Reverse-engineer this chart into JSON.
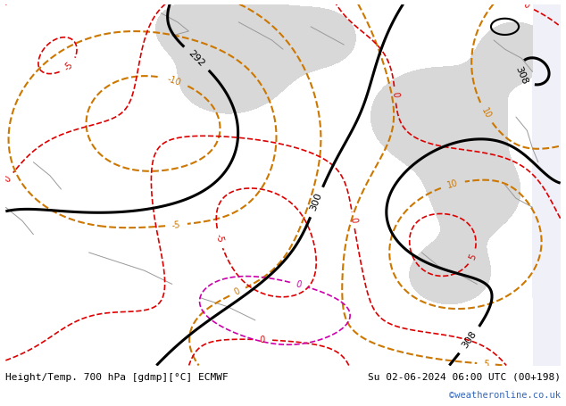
{
  "title_left": "Height/Temp. 700 hPa [gdmp][°C] ECMWF",
  "title_right": "Su 02-06-2024 06:00 UTC (00+198)",
  "copyright": "©weatheronline.co.uk",
  "bg_color": "#ffffff",
  "land_color": "#c8e8b0",
  "sea_color": "#d8d8d8",
  "copyright_color": "#3366bb"
}
